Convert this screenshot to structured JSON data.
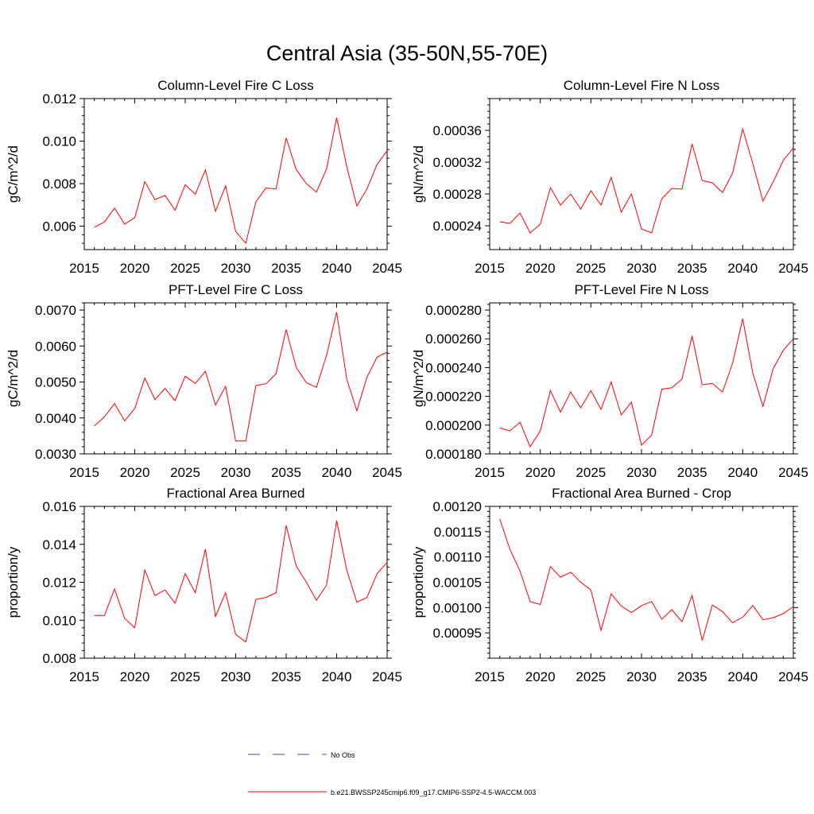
{
  "figure": {
    "title": "Central Asia (35-50N,55-70E)"
  },
  "legend": {
    "items": [
      {
        "label": "No Obs",
        "color": "#4a4aa6",
        "style": "dashed"
      },
      {
        "label": "b.e21.BWSSP245cmip6.f09_g17.CMIP6-SSP2-4.5-WACCM.003",
        "color": "#ff0000",
        "style": "solid"
      }
    ]
  },
  "chart_data": [
    {
      "type": "line",
      "title": "Column-Level Fire C Loss",
      "ylabel": "gC/m^2/d",
      "xlim": [
        2015,
        2045
      ],
      "ylim": [
        0.0049,
        0.012
      ],
      "xticks": [
        2015,
        2020,
        2025,
        2030,
        2035,
        2040,
        2045
      ],
      "xtick_labels": [
        "2015",
        "2020",
        "2025",
        "2030",
        "2035",
        "2040",
        "2045"
      ],
      "yticks": [
        0.006,
        0.008,
        0.01,
        0.012
      ],
      "ytick_labels": [
        "0.006",
        "0.008",
        "0.010",
        "0.012"
      ],
      "grid": false,
      "series": [
        {
          "name": "b.e21.BWSSP245cmip6.f09_g17.CMIP6-SSP2-4.5-WACCM.003",
          "color": "#ff0000",
          "x": [
            2016,
            2017,
            2018,
            2019,
            2020,
            2021,
            2022,
            2023,
            2024,
            2025,
            2026,
            2027,
            2028,
            2029,
            2030,
            2031,
            2032,
            2033,
            2034,
            2035,
            2036,
            2037,
            2038,
            2039,
            2040,
            2041,
            2042,
            2043,
            2044,
            2045
          ],
          "values": [
            0.00595,
            0.0062,
            0.00685,
            0.0061,
            0.0064,
            0.0081,
            0.00725,
            0.00745,
            0.00675,
            0.00795,
            0.0075,
            0.00865,
            0.0067,
            0.0079,
            0.00575,
            0.0052,
            0.00715,
            0.0078,
            0.00775,
            0.01015,
            0.00865,
            0.008,
            0.0076,
            0.0087,
            0.0111,
            0.0088,
            0.00695,
            0.00775,
            0.0089,
            0.00955
          ]
        }
      ]
    },
    {
      "type": "line",
      "title": "Column-Level Fire N Loss",
      "ylabel": "gN/m^2/d",
      "xlim": [
        2015,
        2045
      ],
      "ylim": [
        0.00021,
        0.0004
      ],
      "xticks": [
        2015,
        2020,
        2025,
        2030,
        2035,
        2040,
        2045
      ],
      "xtick_labels": [
        "2015",
        "2020",
        "2025",
        "2030",
        "2035",
        "2040",
        "2045"
      ],
      "yticks": [
        0.00024,
        0.00028,
        0.00032,
        0.00036
      ],
      "ytick_labels": [
        "0.00024",
        "0.00028",
        "0.00032",
        "0.00036"
      ],
      "grid": false,
      "series": [
        {
          "name": "b.e21.BWSSP245cmip6.f09_g17.CMIP6-SSP2-4.5-WACCM.003",
          "color": "#ff0000",
          "x": [
            2016,
            2017,
            2018,
            2019,
            2020,
            2021,
            2022,
            2023,
            2024,
            2025,
            2026,
            2027,
            2028,
            2029,
            2030,
            2031,
            2032,
            2033,
            2034,
            2035,
            2036,
            2037,
            2038,
            2039,
            2040,
            2041,
            2042,
            2043,
            2044,
            2045
          ],
          "values": [
            0.000245,
            0.000243,
            0.000256,
            0.000231,
            0.000242,
            0.000288,
            0.000266,
            0.00028,
            0.000261,
            0.000284,
            0.000266,
            0.000301,
            0.000257,
            0.00028,
            0.000236,
            0.000231,
            0.000274,
            0.000287,
            0.000286,
            0.000343,
            0.000297,
            0.000294,
            0.000282,
            0.000306,
            0.000362,
            0.000318,
            0.000271,
            0.000295,
            0.000322,
            0.000338
          ]
        }
      ]
    },
    {
      "type": "line",
      "title": "PFT-Level Fire C Loss",
      "ylabel": "gC/m^2/d",
      "xlim": [
        2015,
        2045
      ],
      "ylim": [
        0.003,
        0.0072
      ],
      "xticks": [
        2015,
        2020,
        2025,
        2030,
        2035,
        2040,
        2045
      ],
      "xtick_labels": [
        "2015",
        "2020",
        "2025",
        "2030",
        "2035",
        "2040",
        "2045"
      ],
      "yticks": [
        0.003,
        0.004,
        0.005,
        0.006,
        0.007
      ],
      "ytick_labels": [
        "0.0030",
        "0.0040",
        "0.0050",
        "0.0060",
        "0.0070"
      ],
      "grid": false,
      "series": [
        {
          "name": "b.e21.BWSSP245cmip6.f09_g17.CMIP6-SSP2-4.5-WACCM.003",
          "color": "#ff0000",
          "x": [
            2016,
            2017,
            2018,
            2019,
            2020,
            2021,
            2022,
            2023,
            2024,
            2025,
            2026,
            2027,
            2028,
            2029,
            2030,
            2031,
            2032,
            2033,
            2034,
            2035,
            2036,
            2037,
            2038,
            2039,
            2040,
            2041,
            2042,
            2043,
            2044,
            2045
          ],
          "values": [
            0.00378,
            0.00403,
            0.0044,
            0.00392,
            0.00426,
            0.00511,
            0.00451,
            0.00482,
            0.00448,
            0.00516,
            0.00496,
            0.0053,
            0.00436,
            0.00488,
            0.00336,
            0.00336,
            0.0049,
            0.00495,
            0.00523,
            0.00646,
            0.0054,
            0.00498,
            0.00485,
            0.00574,
            0.00694,
            0.00508,
            0.0042,
            0.00513,
            0.00569,
            0.00583
          ]
        }
      ]
    },
    {
      "type": "line",
      "title": "PFT-Level Fire N Loss",
      "ylabel": "gN/m^2/d",
      "xlim": [
        2015,
        2045
      ],
      "ylim": [
        0.00018,
        0.000285
      ],
      "xticks": [
        2015,
        2020,
        2025,
        2030,
        2035,
        2040,
        2045
      ],
      "xtick_labels": [
        "2015",
        "2020",
        "2025",
        "2030",
        "2035",
        "2040",
        "2045"
      ],
      "yticks": [
        0.00018,
        0.0002,
        0.00022,
        0.00024,
        0.00026,
        0.00028
      ],
      "ytick_labels": [
        "0.000180",
        "0.000200",
        "0.000220",
        "0.000240",
        "0.000260",
        "0.000280"
      ],
      "grid": false,
      "series": [
        {
          "name": "b.e21.BWSSP245cmip6.f09_g17.CMIP6-SSP2-4.5-WACCM.003",
          "color": "#ff0000",
          "x": [
            2016,
            2017,
            2018,
            2019,
            2020,
            2021,
            2022,
            2023,
            2024,
            2025,
            2026,
            2027,
            2028,
            2029,
            2030,
            2031,
            2032,
            2033,
            2034,
            2035,
            2036,
            2037,
            2038,
            2039,
            2040,
            2041,
            2042,
            2043,
            2044,
            2045
          ],
          "values": [
            0.000198,
            0.000196,
            0.000202,
            0.000185,
            0.000196,
            0.000224,
            0.000209,
            0.000223,
            0.000212,
            0.000224,
            0.000211,
            0.00023,
            0.000207,
            0.000216,
            0.000186,
            0.000193,
            0.000225,
            0.000226,
            0.000232,
            0.000262,
            0.000228,
            0.000229,
            0.000223,
            0.000243,
            0.000274,
            0.000236,
            0.000213,
            0.000239,
            0.000252,
            0.00026
          ]
        }
      ]
    },
    {
      "type": "line",
      "title": "Fractional Area Burned",
      "ylabel": "proportion/y",
      "xlim": [
        2015,
        2045
      ],
      "ylim": [
        0.008,
        0.016
      ],
      "xticks": [
        2015,
        2020,
        2025,
        2030,
        2035,
        2040,
        2045
      ],
      "xtick_labels": [
        "2015",
        "2020",
        "2025",
        "2030",
        "2035",
        "2040",
        "2045"
      ],
      "yticks": [
        0.008,
        0.01,
        0.012,
        0.014,
        0.016
      ],
      "ytick_labels": [
        "0.008",
        "0.010",
        "0.012",
        "0.014",
        "0.016"
      ],
      "grid": false,
      "series": [
        {
          "name": "b.e21.BWSSP245cmip6.f09_g17.CMIP6-SSP2-4.5-WACCM.003",
          "color": "#ff0000",
          "x": [
            2016,
            2017,
            2018,
            2019,
            2020,
            2021,
            2022,
            2023,
            2024,
            2025,
            2026,
            2027,
            2028,
            2029,
            2030,
            2031,
            2032,
            2033,
            2034,
            2035,
            2036,
            2037,
            2038,
            2039,
            2040,
            2041,
            2042,
            2043,
            2044,
            2045
          ],
          "values": [
            0.01025,
            0.01025,
            0.01165,
            0.0101,
            0.0096,
            0.01265,
            0.0113,
            0.0116,
            0.0109,
            0.01245,
            0.01145,
            0.01375,
            0.0102,
            0.01145,
            0.00925,
            0.00885,
            0.0111,
            0.0112,
            0.01145,
            0.015,
            0.01285,
            0.012,
            0.01105,
            0.01185,
            0.01525,
            0.01265,
            0.01095,
            0.0112,
            0.01245,
            0.01305
          ]
        }
      ]
    },
    {
      "type": "line",
      "title": "Fractional Area Burned - Crop",
      "ylabel": "proportion/y",
      "xlim": [
        2015,
        2045
      ],
      "ylim": [
        0.0009,
        0.0012
      ],
      "xticks": [
        2015,
        2020,
        2025,
        2030,
        2035,
        2040,
        2045
      ],
      "xtick_labels": [
        "2015",
        "2020",
        "2025",
        "2030",
        "2035",
        "2040",
        "2045"
      ],
      "yticks": [
        0.00095,
        0.001,
        0.00105,
        0.0011,
        0.00115,
        0.0012
      ],
      "ytick_labels": [
        "0.00095",
        "0.00100",
        "0.00105",
        "0.00110",
        "0.00115",
        "0.00120"
      ],
      "grid": false,
      "series": [
        {
          "name": "b.e21.BWSSP245cmip6.f09_g17.CMIP6-SSP2-4.5-WACCM.003",
          "color": "#ff0000",
          "x": [
            2016,
            2017,
            2018,
            2019,
            2020,
            2021,
            2022,
            2023,
            2024,
            2025,
            2026,
            2027,
            2028,
            2029,
            2030,
            2031,
            2032,
            2033,
            2034,
            2035,
            2036,
            2037,
            2038,
            2039,
            2040,
            2041,
            2042,
            2043,
            2044,
            2045
          ],
          "values": [
            0.001175,
            0.001115,
            0.001072,
            0.001012,
            0.001006,
            0.001081,
            0.00106,
            0.00107,
            0.00105,
            0.001035,
            0.000955,
            0.001027,
            0.001003,
            0.00099,
            0.001004,
            0.001012,
            0.000977,
            0.000996,
            0.000972,
            0.001024,
            0.000935,
            0.001005,
            0.000992,
            0.00097,
            0.000981,
            0.001004,
            0.000976,
            0.00098,
            0.000988,
            0.001002
          ]
        }
      ]
    }
  ]
}
